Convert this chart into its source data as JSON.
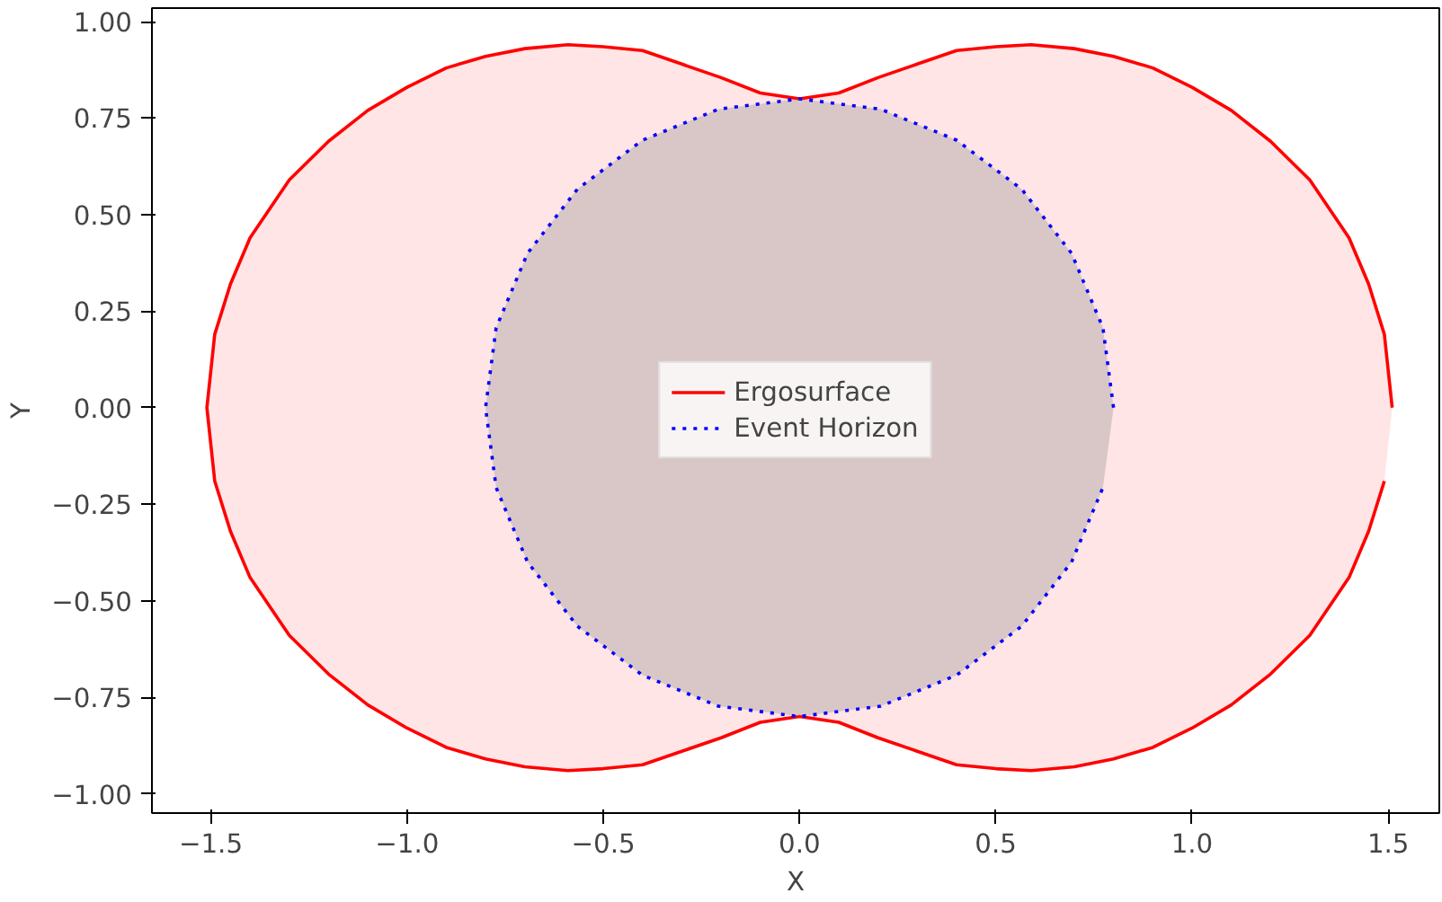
{
  "chart_data": {
    "type": "line",
    "xlabel": "X",
    "ylabel": "Y",
    "xlim": [
      -1.65,
      1.63
    ],
    "ylim": [
      -1.05,
      1.035
    ],
    "xticks": [
      {
        "value": -1.5,
        "label": "−1.5"
      },
      {
        "value": -1.0,
        "label": "−1.0"
      },
      {
        "value": -0.5,
        "label": "−0.5"
      },
      {
        "value": 0.0,
        "label": "0.0"
      },
      {
        "value": 0.5,
        "label": "0.5"
      },
      {
        "value": 1.0,
        "label": "1.0"
      },
      {
        "value": 1.5,
        "label": "1.5"
      }
    ],
    "yticks": [
      {
        "value": -1.0,
        "label": "−1.00"
      },
      {
        "value": -0.75,
        "label": "−0.75"
      },
      {
        "value": -0.5,
        "label": "−0.50"
      },
      {
        "value": -0.25,
        "label": "−0.25"
      },
      {
        "value": 0.0,
        "label": "0.00"
      },
      {
        "value": 0.25,
        "label": "0.25"
      },
      {
        "value": 0.5,
        "label": "0.50"
      },
      {
        "value": 0.75,
        "label": "0.75"
      },
      {
        "value": 1.0,
        "label": "1.00"
      }
    ],
    "grid": false,
    "legend": "center",
    "series": [
      {
        "name": "Ergosurface",
        "color": "#ff0000",
        "line_style": "solid",
        "x": [
          1.51,
          1.49,
          1.45,
          1.4,
          1.3,
          1.2,
          1.1,
          1.0,
          0.9,
          0.8,
          0.7,
          0.59,
          0.5,
          0.4,
          0.3,
          0.2,
          0.1,
          0,
          -0.1,
          -0.2,
          -0.3,
          -0.4,
          -0.5,
          -0.59,
          -0.7,
          -0.8,
          -0.9,
          -1.0,
          -1.1,
          -1.2,
          -1.3,
          -1.4,
          -1.45,
          -1.49,
          -1.51,
          -1.49,
          -1.45,
          -1.4,
          -1.3,
          -1.2,
          -1.1,
          -1.0,
          -0.9,
          -0.8,
          -0.7,
          -0.59,
          -0.5,
          -0.4,
          -0.3,
          -0.2,
          -0.1,
          0,
          0.1,
          0.2,
          0.3,
          0.4,
          0.5,
          0.59,
          0.7,
          0.8,
          0.9,
          1.0,
          1.1,
          1.2,
          1.3,
          1.4,
          1.45,
          1.49
        ],
        "values": [
          0,
          0.19,
          0.32,
          0.44,
          0.59,
          0.69,
          0.77,
          0.83,
          0.88,
          0.91,
          0.93,
          0.94,
          0.935,
          0.925,
          0.89,
          0.855,
          0.815,
          0.8,
          0.815,
          0.855,
          0.89,
          0.925,
          0.935,
          0.94,
          0.93,
          0.91,
          0.88,
          0.83,
          0.77,
          0.69,
          0.59,
          0.44,
          0.32,
          0.19,
          0,
          -0.19,
          -0.32,
          -0.44,
          -0.59,
          -0.69,
          -0.77,
          -0.83,
          -0.88,
          -0.91,
          -0.93,
          -0.94,
          -0.935,
          -0.925,
          -0.89,
          -0.855,
          -0.815,
          -0.8,
          -0.815,
          -0.855,
          -0.89,
          -0.925,
          -0.935,
          -0.94,
          -0.93,
          -0.91,
          -0.88,
          -0.83,
          -0.77,
          -0.69,
          -0.59,
          -0.44,
          -0.32,
          -0.19
        ]
      },
      {
        "name": "Event Horizon",
        "color": "#0000ff",
        "line_style": "dotted",
        "x": [
          0.8,
          0.773,
          0.693,
          0.566,
          0.4,
          0.207,
          0,
          -0.207,
          -0.4,
          -0.566,
          -0.693,
          -0.773,
          -0.8,
          -0.773,
          -0.693,
          -0.566,
          -0.4,
          -0.207,
          0,
          0.207,
          0.4,
          0.566,
          0.693,
          0.773
        ],
        "values": [
          0,
          0.207,
          0.4,
          0.566,
          0.693,
          0.773,
          0.8,
          0.773,
          0.693,
          0.566,
          0.4,
          0.207,
          0,
          -0.207,
          -0.4,
          -0.566,
          -0.693,
          -0.773,
          -0.8,
          -0.773,
          -0.693,
          -0.566,
          -0.4,
          -0.207
        ]
      }
    ]
  }
}
